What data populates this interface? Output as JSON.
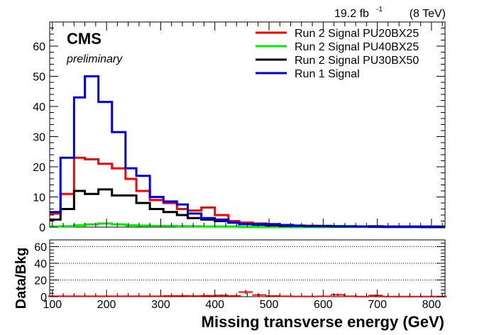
{
  "lumi_label": "19.2 fb",
  "lumi_exp": "-1",
  "energy_label": "(8 TeV)",
  "experiment": "CMS",
  "status": "preliminary",
  "chart_data": [
    {
      "type": "line",
      "step": true,
      "xlabel": "Missing transverse energy (GeV)",
      "xlim": [
        95,
        825
      ],
      "ylim": [
        0,
        68
      ],
      "yticks": [
        0,
        10,
        20,
        30,
        40,
        50,
        60
      ],
      "xticks": [
        100,
        200,
        300,
        400,
        500,
        600,
        700,
        800
      ],
      "legend_position": "top-right",
      "bin_edges": [
        95,
        115,
        140,
        160,
        185,
        210,
        235,
        255,
        280,
        305,
        330,
        350,
        375,
        400,
        425,
        445,
        470,
        495,
        520,
        545,
        565,
        590,
        615,
        640,
        660,
        685,
        710,
        735,
        760,
        780,
        805,
        825
      ],
      "series": [
        {
          "name": "Run 2 Signal PU20BX25",
          "color": "#ff0000",
          "values": [
            4.5,
            11,
            23,
            22.5,
            21,
            19.5,
            16,
            12,
            9,
            8,
            6,
            5.5,
            6.5,
            4,
            2,
            1.5,
            1.2,
            0.8,
            0.7,
            0.5,
            0.4,
            0.3,
            0.3,
            0.2,
            0.2,
            0.2,
            0.1,
            0.1,
            0.1,
            0.1,
            0.1
          ]
        },
        {
          "name": "Run 2 Signal PU40BX25",
          "color": "#00ee00",
          "values": [
            0.2,
            0.3,
            0.6,
            0.9,
            1.2,
            0.9,
            0.6,
            0.5,
            0.4,
            0.4,
            0.3,
            0.3,
            0.2,
            0.2,
            0.2,
            0.1,
            0.1,
            0.1,
            0.1,
            0.1,
            0.1,
            0.1,
            0.1,
            0.1,
            0.1,
            0.1,
            0,
            0,
            0,
            0,
            0
          ]
        },
        {
          "name": "Run 2 Signal PU30BX50",
          "color": "#000000",
          "values": [
            2.5,
            6,
            12,
            11,
            12.5,
            10.5,
            10.5,
            8,
            6,
            5,
            4,
            3,
            2.5,
            2,
            1.5,
            1,
            0.8,
            0.6,
            0.4,
            0.4,
            0.3,
            0.3,
            0.2,
            0.2,
            0.2,
            0.1,
            0.1,
            0.1,
            0.1,
            0,
            0
          ]
        },
        {
          "name": "Run 1 Signal",
          "color": "#0000dd",
          "values": [
            5,
            23,
            43,
            50,
            41.5,
            31.5,
            19.5,
            17,
            10,
            8.5,
            7.5,
            4.5,
            3,
            2.5,
            1.5,
            1,
            1,
            1,
            0.7,
            0.5,
            0.4,
            0.4,
            0.3,
            0.3,
            0.2,
            0.3,
            0.2,
            0.2,
            0.2,
            0.2,
            0.2
          ]
        }
      ]
    },
    {
      "type": "scatter",
      "ylabel": "Data/Bkg",
      "xlabel": "Missing transverse energy (GeV)",
      "xlim": [
        95,
        825
      ],
      "ylim": [
        0,
        68
      ],
      "yticks": [
        0,
        20,
        40,
        60
      ],
      "xticks": [
        100,
        200,
        300,
        400,
        500,
        600,
        700,
        800
      ],
      "grid": "horizontal dotted at 20, 40, 60",
      "series": [
        {
          "color": "#ff0000",
          "x": [
            105,
            127,
            150,
            172,
            197,
            222,
            245,
            267,
            292,
            317,
            340,
            362,
            387,
            412,
            435,
            457,
            482,
            507,
            532,
            555,
            577,
            602,
            627,
            650,
            672,
            697,
            722,
            747,
            770,
            792,
            815
          ],
          "y": [
            0.5,
            0.5,
            0.5,
            0.5,
            0.5,
            0.5,
            0.5,
            0.5,
            0.5,
            0.8,
            1.0,
            0.7,
            1.2,
            1.5,
            1.0,
            5.5,
            2.0,
            0.8,
            0.5,
            0.3,
            0.3,
            0.4,
            2.2,
            0.5,
            0.2,
            1.5,
            0.2,
            0.2,
            0.2,
            0.2,
            0.2
          ],
          "yerr": [
            0.5,
            0.5,
            0.5,
            0.5,
            0.5,
            0.5,
            0.5,
            0.5,
            0.5,
            0.6,
            0.8,
            0.6,
            1.0,
            1.2,
            0.8,
            2.5,
            1.2,
            0.6,
            0.5,
            0.4,
            0.4,
            0.5,
            1.5,
            0.5,
            0.3,
            1.2,
            0.3,
            0.3,
            0.3,
            0.3,
            0.3
          ]
        }
      ]
    }
  ]
}
